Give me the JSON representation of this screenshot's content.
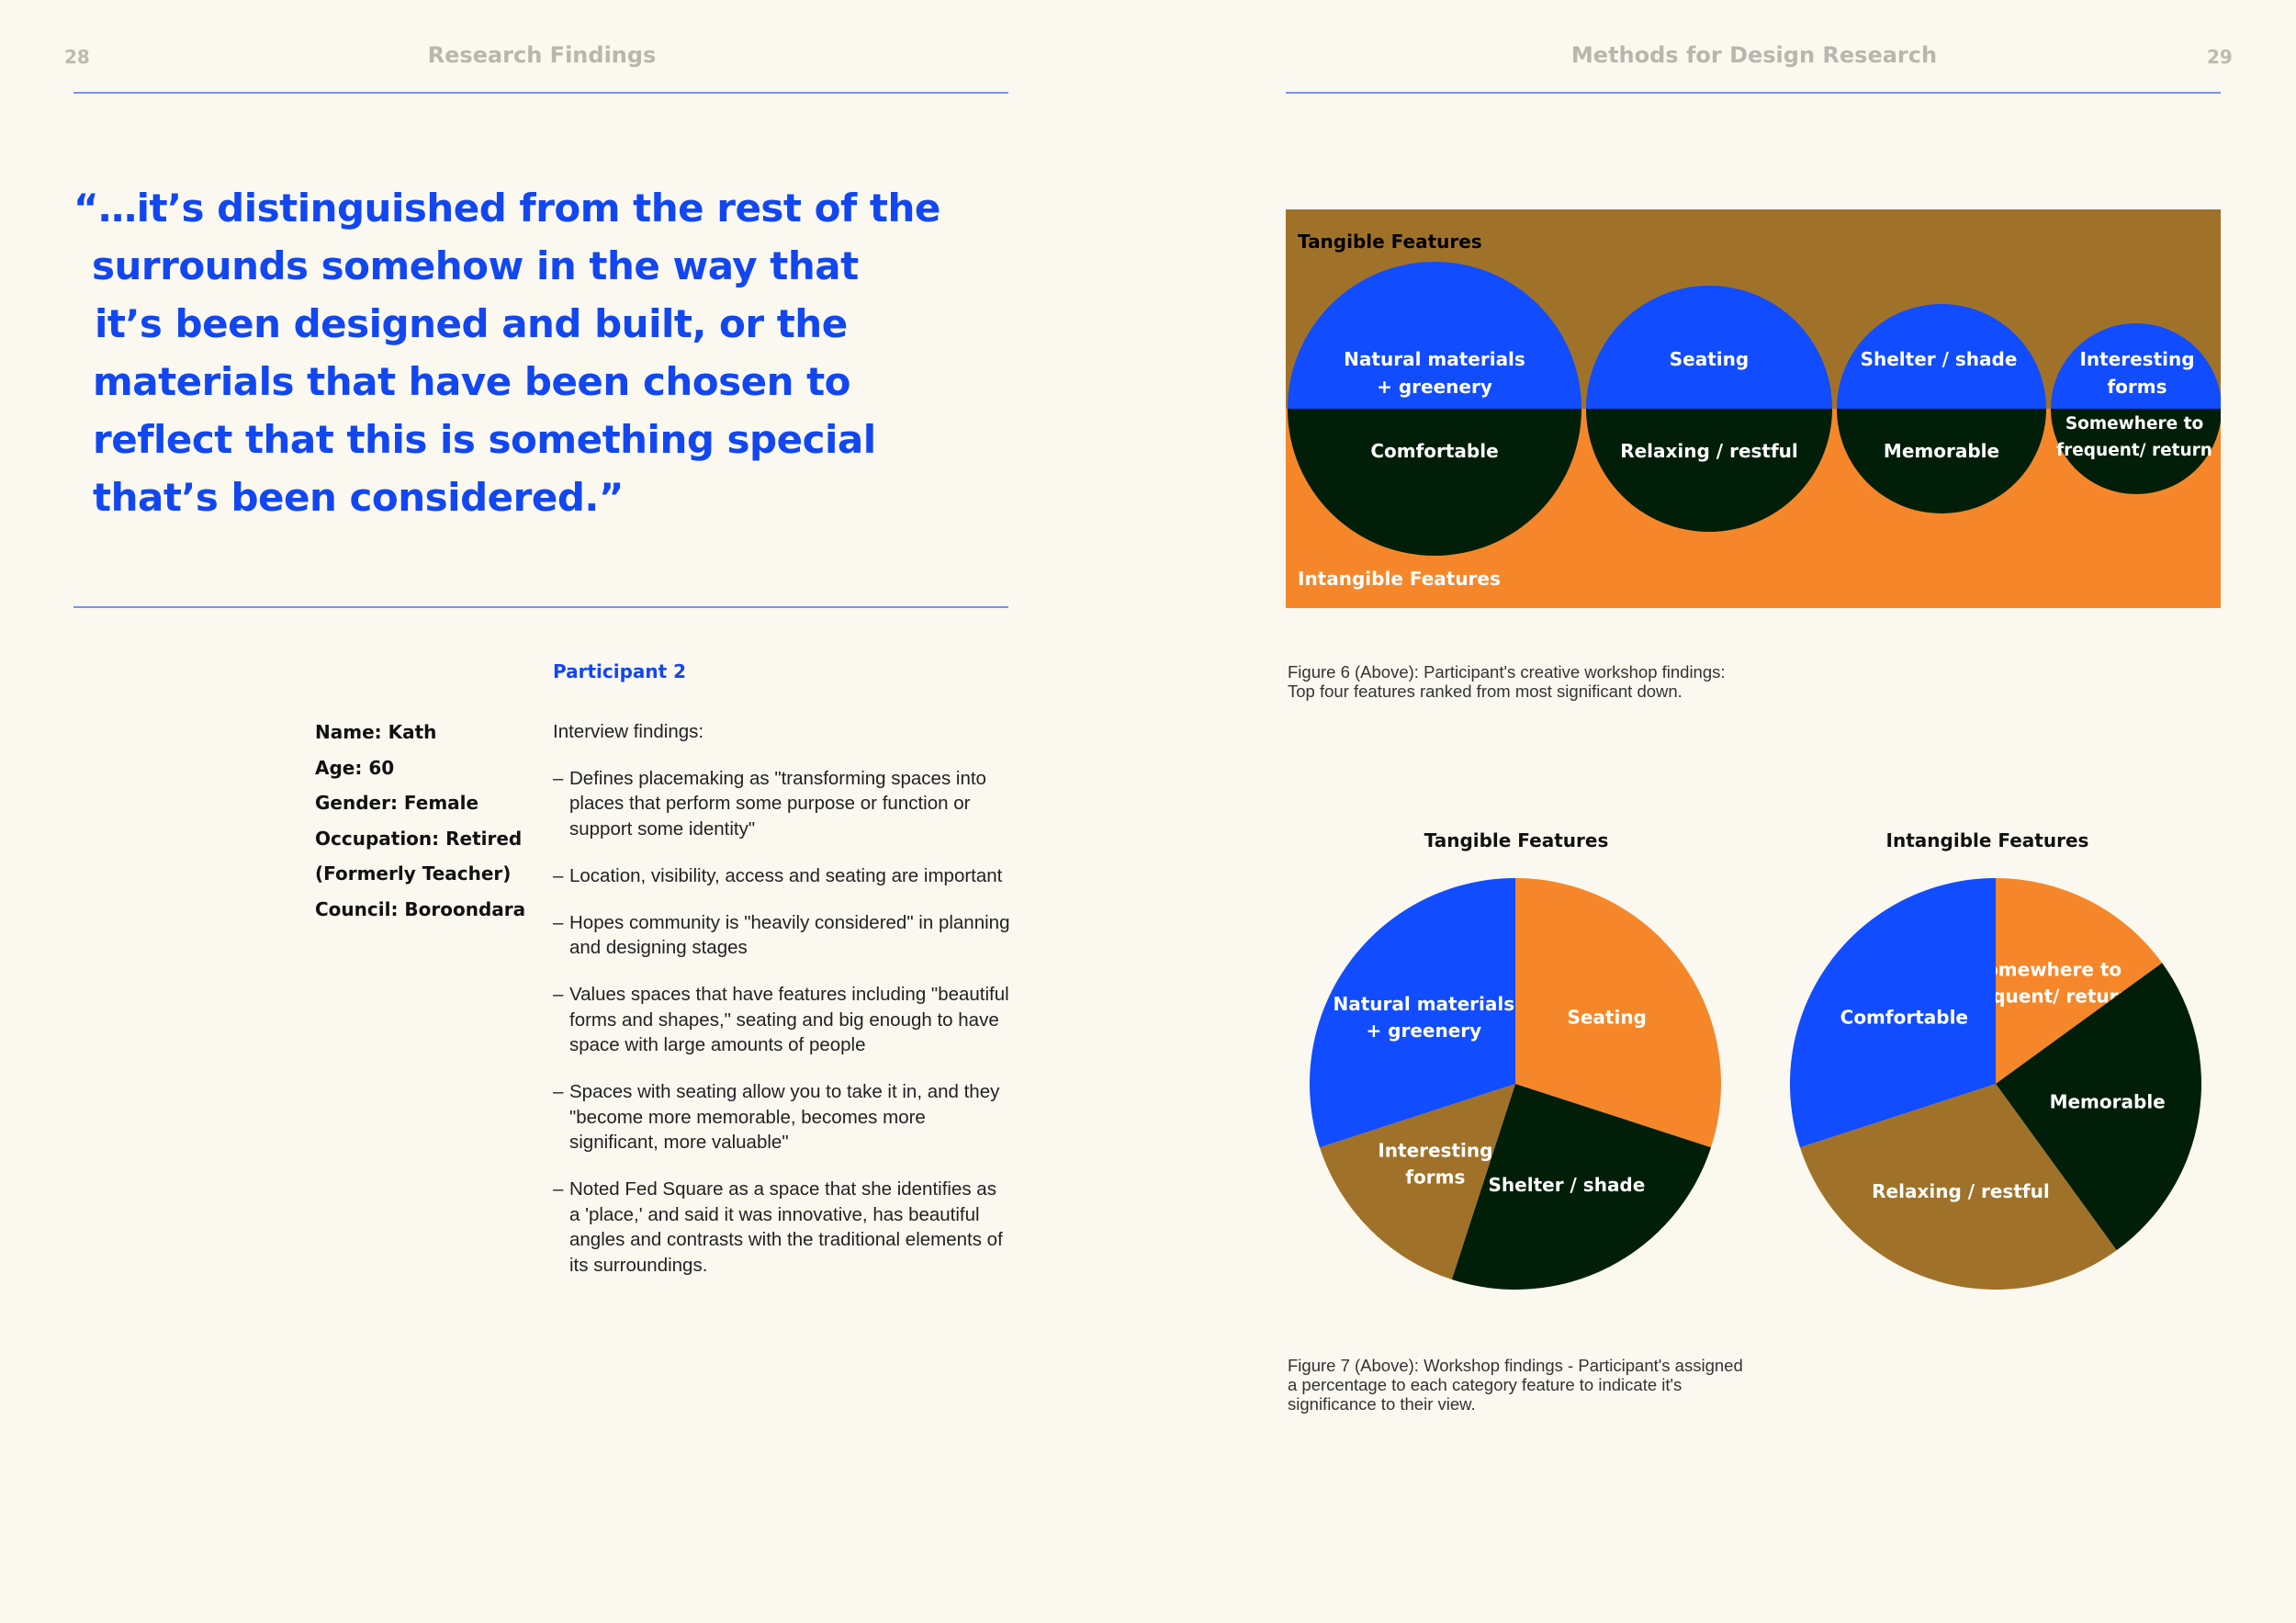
{
  "left_page": {
    "page_number": "28",
    "running_title": "Research Findings",
    "quote_lines": [
      "“…it’s distinguished from the rest of the",
      "surrounds somehow in the way that",
      "it’s been designed and built, or the",
      "materials that have been chosen to",
      "reflect that this is something special",
      "that’s been considered.”"
    ],
    "participant": {
      "title": "Participant 2",
      "details": [
        "Name: Kath",
        "Age: 60",
        "Gender: Female",
        "Occupation: Retired",
        "(Formerly Teacher)",
        "Council: Boroondara"
      ],
      "findings_intro": "Interview findings:",
      "dash": "–",
      "findings": [
        "Defines placemaking as \"transforming spaces into places that perform some purpose or function or support some identity\"",
        "Location, visibility, access and seating are important",
        "Hopes community is \"heavily considered\" in planning and designing stages",
        "Values spaces that have features including \"beautiful forms and shapes,\" seating and big enough to have space with large amounts of people",
        "Spaces with seating allow you to take it in, and they \"become more memorable, becomes more significant, more valuable\"",
        "Noted Fed Square as a space that she identifies as a 'place,' and said it was innovative, has beautiful angles and contrasts with the traditional elements of its surroundings."
      ]
    }
  },
  "right_page": {
    "page_number": "29",
    "running_title": "Methods for Design Research",
    "figure6": {
      "tangible_label": "Tangible Features",
      "intangible_label": "Intangible Features",
      "ranked_pairs": [
        {
          "rank": 1,
          "tangible": [
            "Natural materials",
            "+ greenery"
          ],
          "intangible": [
            "Comfortable"
          ]
        },
        {
          "rank": 2,
          "tangible": [
            "Seating"
          ],
          "intangible": [
            "Relaxing / restful"
          ]
        },
        {
          "rank": 3,
          "tangible": [
            "Shelter / shade"
          ],
          "intangible": [
            "Memorable"
          ]
        },
        {
          "rank": 4,
          "tangible": [
            "Interesting",
            "forms"
          ],
          "intangible": [
            "Somewhere to",
            "frequent/ return"
          ]
        }
      ],
      "caption_lines": [
        "Figure 6 (Above): Participant's creative workshop findings:",
        "Top four features ranked from most significant down."
      ]
    },
    "figure7": {
      "caption_lines": [
        "Figure 7 (Above): Workshop findings - Participant's assigned",
        "a percentage to each category feature to indicate it's",
        "significance to their view."
      ]
    }
  },
  "colors": {
    "background": "#fbf8f0",
    "accent_blue": "#1247f0",
    "rule_blue": "#7c93e6",
    "brown": "#a07229",
    "orange": "#f5872a",
    "dark_green": "#011f08",
    "white": "#ffffff"
  },
  "chart_data": [
    {
      "type": "pie",
      "title": "Tangible Features",
      "unit": "percent (estimated)",
      "series": [
        {
          "name": "Seating",
          "value": 30,
          "label_lines": [
            "Seating"
          ],
          "color": "#f5872a"
        },
        {
          "name": "Shelter / shade",
          "value": 25,
          "label_lines": [
            "Shelter / shade"
          ],
          "color": "#011f08"
        },
        {
          "name": "Interesting forms",
          "value": 15,
          "label_lines": [
            "Interesting",
            "forms"
          ],
          "color": "#a07229"
        },
        {
          "name": "Natural materials + greenery",
          "value": 30,
          "label_lines": [
            "Natural materials",
            "+ greenery"
          ],
          "color": "#114cff"
        }
      ]
    },
    {
      "type": "pie",
      "title": "Intangible Features",
      "unit": "percent (estimated)",
      "series": [
        {
          "name": "Somewhere to frequent/ return",
          "value": 15,
          "label_lines": [
            "Somewhere to",
            "frequent/ return"
          ],
          "color": "#f5872a"
        },
        {
          "name": "Memorable",
          "value": 25,
          "label_lines": [
            "Memorable"
          ],
          "color": "#011f08"
        },
        {
          "name": "Relaxing / restful",
          "value": 30,
          "label_lines": [
            "Relaxing / restful"
          ],
          "color": "#a07229"
        },
        {
          "name": "Comfortable",
          "value": 30,
          "label_lines": [
            "Comfortable"
          ],
          "color": "#114cff"
        }
      ]
    }
  ]
}
